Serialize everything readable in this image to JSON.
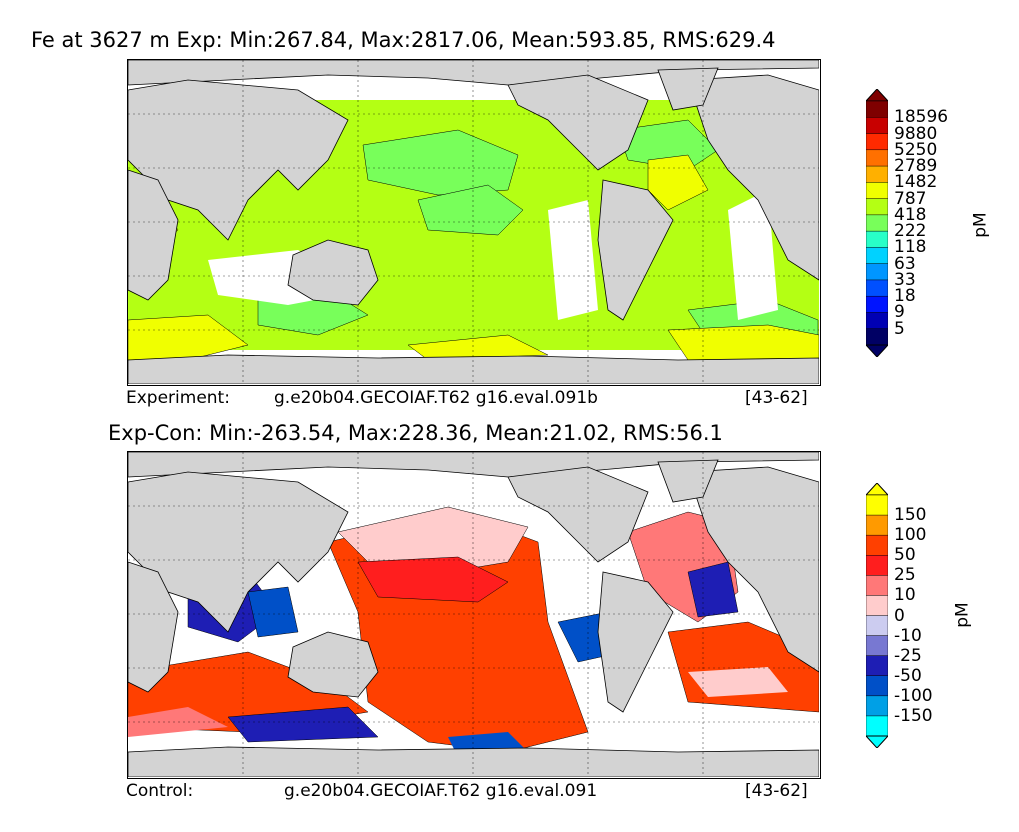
{
  "top_panel": {
    "title": "Fe at 3627 m Exp: Min:267.84, Max:2817.06, Mean:593.85, RMS:629.4",
    "footer_left": "Experiment:",
    "footer_center": "g.e20b04.GECOIAF.T62 g16.eval.091b",
    "footer_right": "[43-62]",
    "colorbar": {
      "unit": "pM",
      "labels": [
        "18596",
        "9880",
        "5250",
        "2789",
        "1482",
        "787",
        "418",
        "222",
        "118",
        "63",
        "33",
        "18",
        "9",
        "5"
      ],
      "colors": [
        "#7f0000",
        "#c80000",
        "#ff2a00",
        "#ff7000",
        "#ffb000",
        "#f0ff00",
        "#b4ff14",
        "#78ff5a",
        "#28ffc8",
        "#00d2ff",
        "#0096ff",
        "#0050ff",
        "#0014ff",
        "#0000b4",
        "#000064"
      ]
    }
  },
  "bottom_panel": {
    "title": "Exp-Con: Min:-263.54, Max:228.36, Mean:21.02, RMS:56.1",
    "footer_left": "Control:",
    "footer_center": "g.e20b04.GECOIAF.T62 g16.eval.091",
    "footer_right": "[43-62]",
    "colorbar": {
      "unit": "pM",
      "labels": [
        "150",
        "100",
        "50",
        "25",
        "10",
        "0",
        "-10",
        "-25",
        "-50",
        "-100",
        "-150"
      ],
      "colors": [
        "#ffff00",
        "#ff9a00",
        "#ff4000",
        "#ff1e1e",
        "#ff7878",
        "#ffcccc",
        "#ccccf0",
        "#7878d2",
        "#1e1eb4",
        "#0050c8",
        "#00a0e6",
        "#00ffff"
      ]
    }
  },
  "map_colors": {
    "land": "#d3d3d3",
    "ocean_missing": "#ffffff"
  }
}
